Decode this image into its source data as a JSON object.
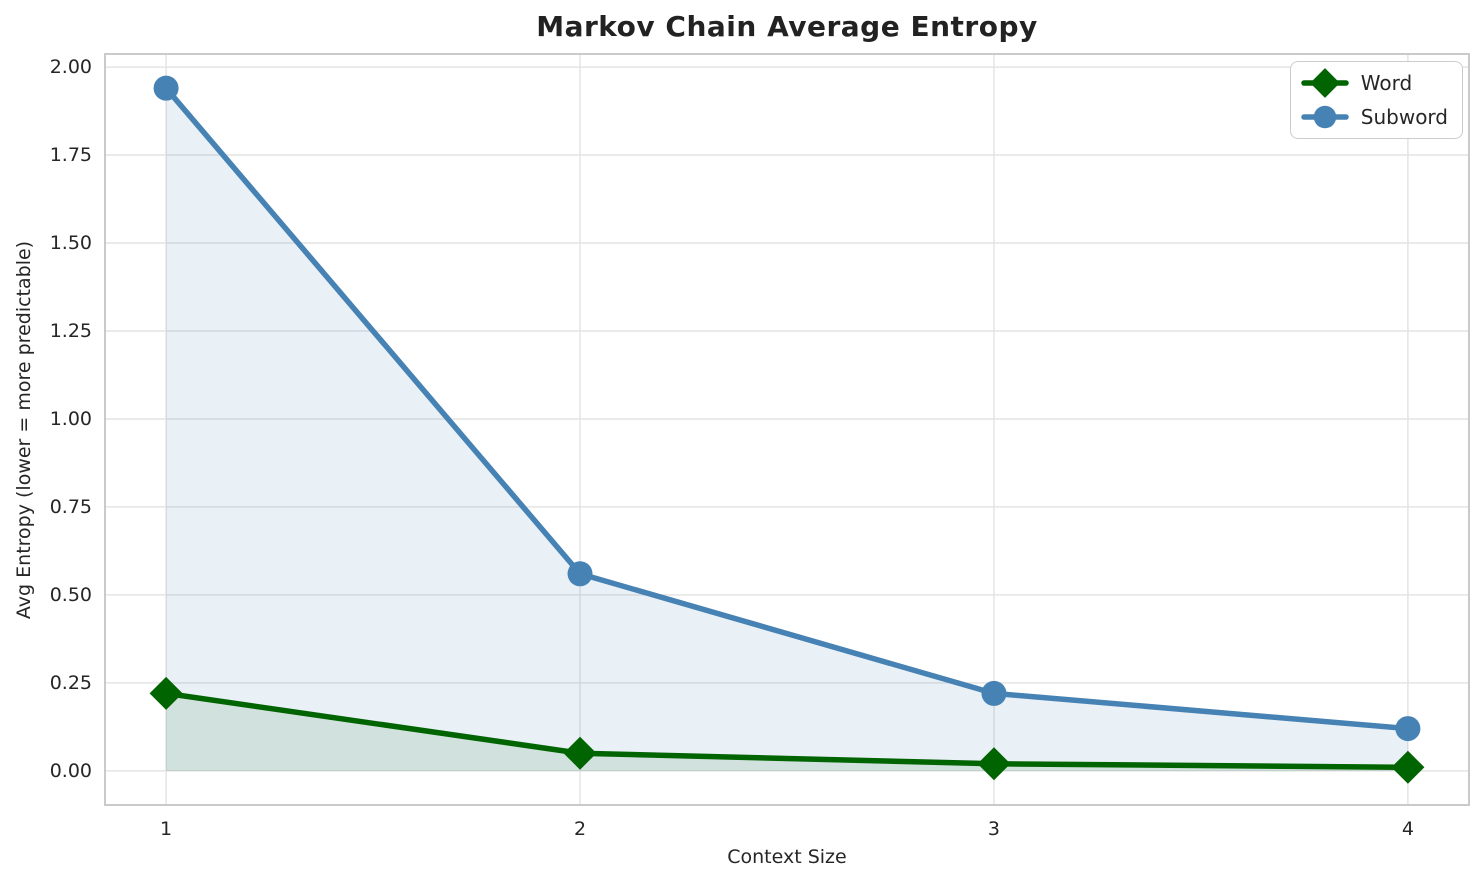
{
  "chart_data": {
    "type": "line",
    "title": "Markov Chain Average Entropy",
    "xlabel": "Context Size",
    "ylabel": "Avg Entropy (lower = more predictable)",
    "x": [
      1,
      2,
      3,
      4
    ],
    "series": [
      {
        "name": "Word",
        "color": "#006400",
        "fill_color": "rgba(0,100,0,0.10)",
        "marker": "diamond",
        "values": [
          0.22,
          0.05,
          0.02,
          0.01
        ]
      },
      {
        "name": "Subword",
        "color": "#4682b4",
        "fill_color": "rgba(70,130,180,0.12)",
        "marker": "circle",
        "values": [
          1.94,
          0.56,
          0.22,
          0.12
        ]
      }
    ],
    "xticks": [
      "1",
      "2",
      "3",
      "4"
    ],
    "yticks": [
      "0.00",
      "0.25",
      "0.50",
      "0.75",
      "1.00",
      "1.25",
      "1.50",
      "1.75",
      "2.00"
    ],
    "xlim": [
      0.85,
      4.15
    ],
    "ylim": [
      -0.1,
      2.04
    ],
    "grid": true,
    "grid_color": "#e4e4e4",
    "spine_color": "#cacaca",
    "legend_position": "upper right",
    "text_color": "#262626",
    "background_color": "#ffffff"
  }
}
